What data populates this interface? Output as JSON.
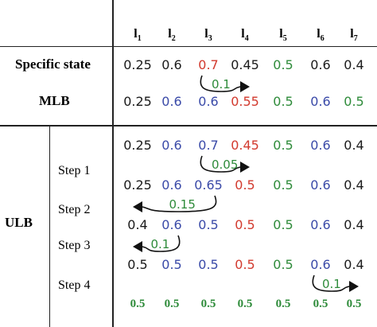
{
  "colors": {
    "black": "#1a1a1a",
    "red": "#d23a2e",
    "green": "#2e8b3a",
    "blue": "#3a4aa8"
  },
  "columns": [
    {
      "base": "l",
      "sub": "1"
    },
    {
      "base": "l",
      "sub": "2"
    },
    {
      "base": "l",
      "sub": "3"
    },
    {
      "base": "l",
      "sub": "4"
    },
    {
      "base": "l",
      "sub": "5"
    },
    {
      "base": "l",
      "sub": "6"
    },
    {
      "base": "l",
      "sub": "7"
    }
  ],
  "row_labels": {
    "specific": "Specific state",
    "mlb": "MLB",
    "ulb": "ULB"
  },
  "steps": [
    "Step 1",
    "Step 2",
    "Step 3",
    "Step 4"
  ],
  "rows": [
    {
      "id": "specific-state",
      "bold": false,
      "cells": [
        {
          "v": "0.25",
          "c": "black"
        },
        {
          "v": "0.6",
          "c": "black"
        },
        {
          "v": "0.7",
          "c": "red"
        },
        {
          "v": "0.45",
          "c": "black"
        },
        {
          "v": "0.5",
          "c": "green"
        },
        {
          "v": "0.6",
          "c": "black"
        },
        {
          "v": "0.4",
          "c": "black"
        }
      ]
    },
    {
      "id": "mlb",
      "bold": false,
      "cells": [
        {
          "v": "0.25",
          "c": "black"
        },
        {
          "v": "0.6",
          "c": "blue"
        },
        {
          "v": "0.6",
          "c": "blue"
        },
        {
          "v": "0.55",
          "c": "red"
        },
        {
          "v": "0.5",
          "c": "green"
        },
        {
          "v": "0.6",
          "c": "blue"
        },
        {
          "v": "0.5",
          "c": "green"
        }
      ]
    },
    {
      "id": "ulb-1",
      "bold": false,
      "cells": [
        {
          "v": "0.25",
          "c": "black"
        },
        {
          "v": "0.6",
          "c": "blue"
        },
        {
          "v": "0.7",
          "c": "blue"
        },
        {
          "v": "0.45",
          "c": "red"
        },
        {
          "v": "0.5",
          "c": "green"
        },
        {
          "v": "0.6",
          "c": "blue"
        },
        {
          "v": "0.4",
          "c": "black"
        }
      ]
    },
    {
      "id": "ulb-2",
      "bold": false,
      "cells": [
        {
          "v": "0.25",
          "c": "black"
        },
        {
          "v": "0.6",
          "c": "blue"
        },
        {
          "v": "0.65",
          "c": "blue"
        },
        {
          "v": "0.5",
          "c": "red"
        },
        {
          "v": "0.5",
          "c": "green"
        },
        {
          "v": "0.6",
          "c": "blue"
        },
        {
          "v": "0.4",
          "c": "black"
        }
      ]
    },
    {
      "id": "ulb-3",
      "bold": false,
      "cells": [
        {
          "v": "0.4",
          "c": "black"
        },
        {
          "v": "0.6",
          "c": "blue"
        },
        {
          "v": "0.5",
          "c": "blue"
        },
        {
          "v": "0.5",
          "c": "red"
        },
        {
          "v": "0.5",
          "c": "green"
        },
        {
          "v": "0.6",
          "c": "blue"
        },
        {
          "v": "0.4",
          "c": "black"
        }
      ]
    },
    {
      "id": "ulb-4",
      "bold": false,
      "cells": [
        {
          "v": "0.5",
          "c": "black"
        },
        {
          "v": "0.5",
          "c": "blue"
        },
        {
          "v": "0.5",
          "c": "blue"
        },
        {
          "v": "0.5",
          "c": "red"
        },
        {
          "v": "0.5",
          "c": "green"
        },
        {
          "v": "0.6",
          "c": "blue"
        },
        {
          "v": "0.4",
          "c": "black"
        }
      ]
    },
    {
      "id": "ulb-final",
      "bold": true,
      "cells": [
        {
          "v": "0.5",
          "c": "green"
        },
        {
          "v": "0.5",
          "c": "green"
        },
        {
          "v": "0.5",
          "c": "green"
        },
        {
          "v": "0.5",
          "c": "green"
        },
        {
          "v": "0.5",
          "c": "green"
        },
        {
          "v": "0.5",
          "c": "green"
        },
        {
          "v": "0.5",
          "c": "green"
        }
      ]
    }
  ],
  "transfers": [
    {
      "label": "0.1",
      "from_col": 3,
      "to_col": 4,
      "below_row": "specific-state"
    },
    {
      "label": "0.05",
      "from_col": 3,
      "to_col": 4,
      "below_row": "ulb-1"
    },
    {
      "label": "0.15",
      "from_col": 3,
      "to_col": 1,
      "below_row": "ulb-2"
    },
    {
      "label": "0.1",
      "from_col": 2,
      "to_col": 1,
      "below_row": "ulb-3"
    },
    {
      "label": "0.1",
      "from_col": 6,
      "to_col": 7,
      "below_row": "ulb-4"
    }
  ]
}
